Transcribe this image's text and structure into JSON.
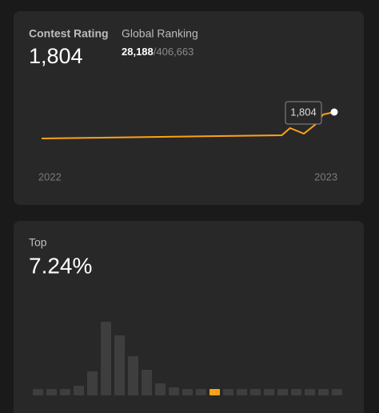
{
  "rating_card": {
    "label": "Contest Rating",
    "rating": "1,804",
    "ranking_label": "Global Ranking",
    "ranking": "28,188",
    "ranking_total": "/406,663",
    "chart": {
      "type": "line",
      "x": [
        2021.97,
        2022.84,
        2022.87,
        2022.92,
        2022.96,
        2022.99,
        2023.03
      ],
      "values": [
        1500,
        1537,
        1620,
        1555,
        1656,
        1776,
        1804
      ],
      "value_labels": [
        null,
        null,
        null,
        null,
        null,
        null,
        "1,804"
      ],
      "xlim": [
        2021.94,
        2023.06
      ],
      "xticks": [
        2022,
        2023
      ],
      "ylim": [
        1400,
        1900
      ],
      "color": "#ffa116"
    }
  },
  "top_card": {
    "label": "Top",
    "percent": "7.24%",
    "chart": {
      "type": "bar",
      "values": [
        8,
        8,
        8,
        12,
        30,
        92,
        75,
        49,
        32,
        15,
        10,
        8,
        8,
        8,
        8,
        8,
        8,
        8,
        8,
        8,
        8,
        8,
        8
      ],
      "ylim": [
        0,
        100
      ],
      "color": "#3e3e3e",
      "highlight_index": 13,
      "highlight_color": "#ffa116"
    }
  }
}
